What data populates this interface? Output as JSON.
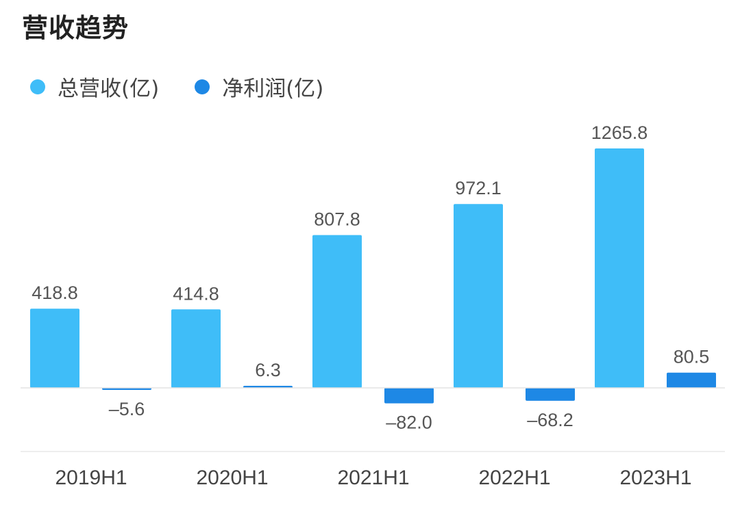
{
  "chart_data": {
    "type": "bar",
    "title": "营收趋势",
    "categories": [
      "2019H1",
      "2020H1",
      "2021H1",
      "2022H1",
      "2023H1"
    ],
    "series": [
      {
        "name": "总营收(亿)",
        "color": "#3fbdf8",
        "values": [
          418.8,
          414.8,
          807.8,
          972.1,
          1265.8
        ],
        "labels": [
          "418.8",
          "414.8",
          "807.8",
          "972.1",
          "1265.8"
        ]
      },
      {
        "name": "净利润(亿)",
        "color": "#1e88e5",
        "values": [
          -5.6,
          6.3,
          -82.0,
          -68.2,
          80.5
        ],
        "labels": [
          "–5.6",
          "6.3",
          "–82.0",
          "–68.2",
          "80.5"
        ]
      }
    ],
    "xlabel": "",
    "ylabel": "",
    "ylim": [
      -100,
      1300
    ],
    "grid": false,
    "legend": "top-left"
  }
}
